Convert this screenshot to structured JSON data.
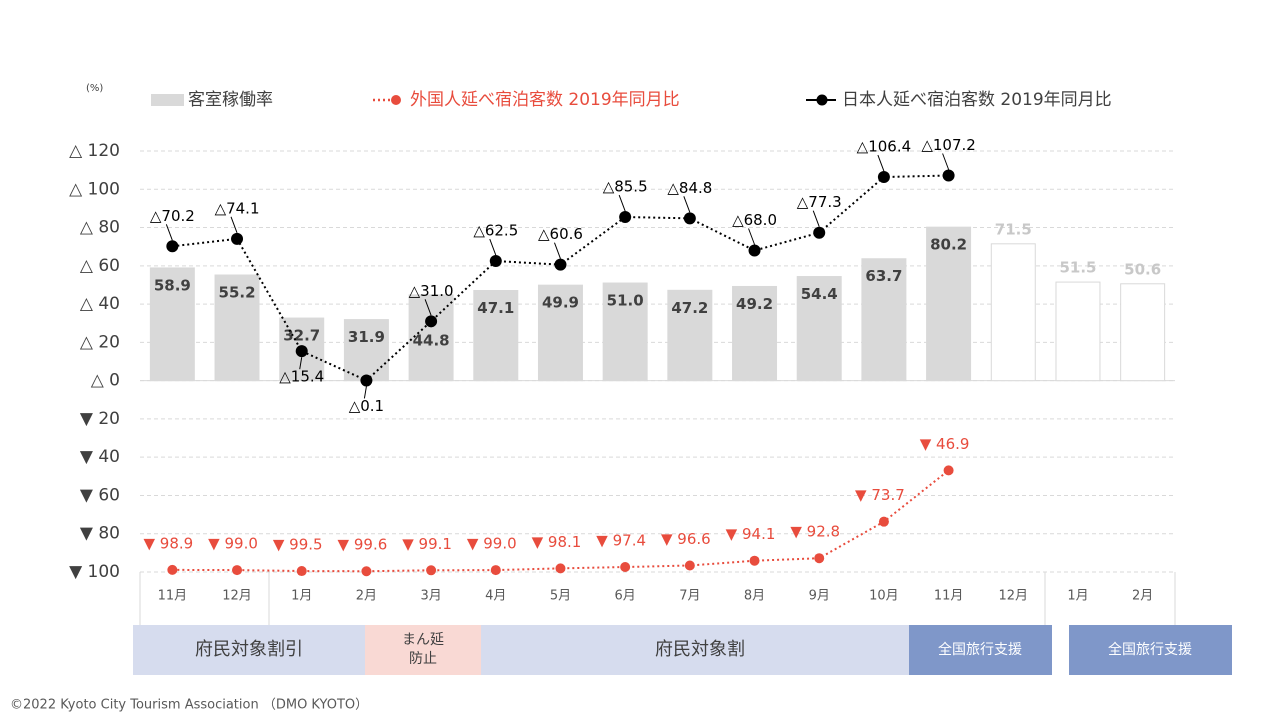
{
  "chart_data": {
    "type": "bar-line",
    "unit_label": "(%)",
    "categories": [
      "11月",
      "12月",
      "1月",
      "2月",
      "3月",
      "4月",
      "5月",
      "6月",
      "7月",
      "8月",
      "9月",
      "10月",
      "11月",
      "12月",
      "1月",
      "2月"
    ],
    "ylim": [
      -100,
      120
    ],
    "yticks": [
      {
        "value": 120,
        "label": "△ 120"
      },
      {
        "value": 100,
        "label": "△ 100"
      },
      {
        "value": 80,
        "label": "△ 80"
      },
      {
        "value": 60,
        "label": "△ 60"
      },
      {
        "value": 40,
        "label": "△ 40"
      },
      {
        "value": 20,
        "label": "△ 20"
      },
      {
        "value": 0,
        "label": "△ 0"
      },
      {
        "value": -20,
        "label": "▼ 20"
      },
      {
        "value": -40,
        "label": "▼ 40"
      },
      {
        "value": -60,
        "label": "▼ 60"
      },
      {
        "value": -80,
        "label": "▼ 80"
      },
      {
        "value": -100,
        "label": "▼ 100"
      }
    ],
    "grid": true,
    "series": [
      {
        "name": "客室稼働率",
        "kind": "bar",
        "color": "#d9d9d9",
        "colors": [
          "#d9d9d9",
          "#d9d9d9",
          "#d9d9d9",
          "#d9d9d9",
          "#d9d9d9",
          "#d9d9d9",
          "#d9d9d9",
          "#d9d9d9",
          "#d9d9d9",
          "#d9d9d9",
          "#d9d9d9",
          "#d9d9d9",
          "#d9d9d9",
          "#ffffff",
          "#ffffff",
          "#ffffff"
        ],
        "values": [
          58.9,
          55.2,
          32.7,
          31.9,
          44.8,
          47.1,
          49.9,
          51.0,
          47.2,
          49.2,
          54.4,
          63.7,
          80.2,
          71.5,
          51.5,
          50.6
        ],
        "value_labels": [
          "58.9",
          "55.2",
          "32.7",
          "31.9",
          "44.8",
          "47.1",
          "49.9",
          "51.0",
          "47.2",
          "49.2",
          "54.4",
          "63.7",
          "80.2",
          "71.5",
          "51.5",
          "50.6"
        ]
      },
      {
        "name": "外国人延べ宿泊客数 2019年同月比",
        "kind": "line",
        "color": "#e84c3d",
        "values": [
          -98.9,
          -99.0,
          -99.5,
          -99.6,
          -99.1,
          -99.0,
          -98.1,
          -97.4,
          -96.6,
          -94.1,
          -92.8,
          -73.7,
          -46.9,
          null,
          null,
          null
        ],
        "value_labels": [
          "▼ 98.9",
          "▼ 99.0",
          "▼ 99.5",
          "▼ 99.6",
          "▼ 99.1",
          "▼ 99.0",
          "▼ 98.1",
          "▼ 97.4",
          "▼ 96.6",
          "▼ 94.1",
          "▼ 92.8",
          "▼ 73.7",
          "▼ 46.9",
          null,
          null,
          null
        ]
      },
      {
        "name": "日本人延べ宿泊客数 2019年同月比",
        "kind": "line",
        "color": "#000000",
        "values": [
          70.2,
          74.1,
          15.4,
          0.1,
          31.0,
          62.5,
          60.6,
          85.5,
          84.8,
          68.0,
          77.3,
          106.4,
          107.2,
          null,
          null,
          null
        ],
        "value_labels": [
          "△70.2",
          "△74.1",
          "△15.4",
          "△0.1",
          "△31.0",
          "△62.5",
          "△60.6",
          "△85.5",
          "△84.8",
          "△68.0",
          "△77.3",
          "△106.4",
          "△107.2",
          null,
          null,
          null
        ]
      }
    ]
  },
  "periods": [
    "府民対象割引",
    "まん延",
    "防止",
    "府民対象割",
    "全国旅行支援",
    "全国旅行支援"
  ],
  "footer": "©2022 Kyoto City Tourism Association （DMO KYOTO）"
}
